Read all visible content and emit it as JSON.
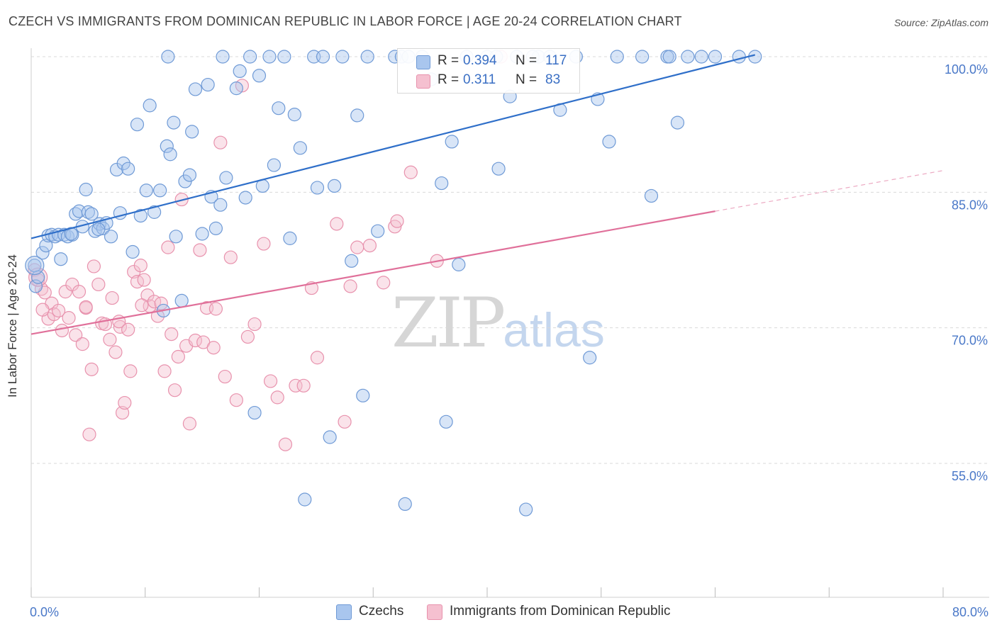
{
  "title": "CZECH VS IMMIGRANTS FROM DOMINICAN REPUBLIC IN LABOR FORCE | AGE 20-24 CORRELATION CHART",
  "source": "Source: ZipAtlas.com",
  "watermark": {
    "main": "ZIP",
    "sub": "atlas"
  },
  "colors": {
    "czech_fill": "#a9c6ee",
    "czech_stroke": "#6f9ad6",
    "czech_line": "#2f6fc9",
    "dom_fill": "#f5c0d0",
    "dom_stroke": "#e892ad",
    "dom_line": "#e0709a",
    "grid": "#d9d9d9",
    "axis_text": "#4a78c8"
  },
  "legend": {
    "rows": [
      {
        "r_label": "R =",
        "r_value": "0.394",
        "n_label": "N =",
        "n_value": "117"
      },
      {
        "r_label": "R =",
        "r_value": "0.311",
        "n_label": "N =",
        "n_value": "83"
      }
    ]
  },
  "bottom_legend": [
    "Czechs",
    "Immigrants from Dominican Republic"
  ],
  "chart_data": {
    "type": "scatter",
    "title": "CZECH VS IMMIGRANTS FROM DOMINICAN REPUBLIC IN LABOR FORCE | AGE 20-24 CORRELATION CHART",
    "xlabel": "",
    "ylabel": "In Labor Force | Age 20-24",
    "xlim": [
      0,
      80
    ],
    "ylim": [
      40,
      105
    ],
    "x_tick_labels": [
      "0.0%",
      "80.0%"
    ],
    "y_ticks": [
      55,
      70,
      85,
      100
    ],
    "y_tick_labels": [
      "55.0%",
      "70.0%",
      "85.0%",
      "100.0%"
    ],
    "grid": true,
    "legend_placement": "top-center",
    "series": [
      {
        "name": "Czechs",
        "r": 0.394,
        "n": 117,
        "trend": {
          "x": [
            0,
            63.5
          ],
          "y": [
            79.9,
            100.2
          ]
        },
        "points": [
          [
            0.3,
            76.9
          ],
          [
            0.4,
            74.6
          ],
          [
            0.6,
            75.6
          ],
          [
            1.0,
            78.3
          ],
          [
            1.3,
            79.1
          ],
          [
            1.5,
            80.2
          ],
          [
            1.8,
            80.3
          ],
          [
            2.1,
            80.1
          ],
          [
            2.4,
            80.3
          ],
          [
            2.6,
            77.6
          ],
          [
            2.9,
            80.3
          ],
          [
            3.2,
            80.1
          ],
          [
            3.6,
            80.3
          ],
          [
            3.9,
            82.6
          ],
          [
            4.2,
            82.9
          ],
          [
            4.5,
            81.2
          ],
          [
            4.8,
            85.3
          ],
          [
            5.0,
            82.8
          ],
          [
            5.3,
            82.6
          ],
          [
            5.6,
            80.7
          ],
          [
            6.0,
            81.5
          ],
          [
            6.3,
            81.0
          ],
          [
            6.6,
            81.6
          ],
          [
            7.0,
            80.1
          ],
          [
            7.5,
            87.5
          ],
          [
            7.8,
            82.7
          ],
          [
            8.1,
            88.2
          ],
          [
            8.5,
            87.6
          ],
          [
            8.9,
            78.4
          ],
          [
            9.3,
            92.5
          ],
          [
            9.6,
            82.4
          ],
          [
            10.1,
            85.2
          ],
          [
            10.4,
            94.6
          ],
          [
            10.8,
            82.8
          ],
          [
            11.3,
            85.2
          ],
          [
            11.6,
            71.9
          ],
          [
            11.9,
            90.1
          ],
          [
            12.2,
            89.2
          ],
          [
            12.5,
            92.7
          ],
          [
            12.7,
            80.1
          ],
          [
            13.2,
            73.0
          ],
          [
            13.5,
            86.2
          ],
          [
            13.9,
            86.9
          ],
          [
            14.1,
            91.7
          ],
          [
            14.4,
            96.4
          ],
          [
            15.0,
            80.4
          ],
          [
            15.5,
            96.9
          ],
          [
            15.8,
            84.5
          ],
          [
            16.2,
            81.0
          ],
          [
            16.6,
            83.6
          ],
          [
            16.8,
            100.0
          ],
          [
            17.1,
            86.6
          ],
          [
            18.0,
            96.5
          ],
          [
            18.3,
            98.4
          ],
          [
            18.8,
            84.4
          ],
          [
            19.2,
            100.0
          ],
          [
            19.6,
            60.6
          ],
          [
            20.0,
            97.9
          ],
          [
            20.3,
            85.7
          ],
          [
            20.9,
            100.0
          ],
          [
            21.3,
            88.0
          ],
          [
            21.7,
            94.3
          ],
          [
            22.2,
            100.0
          ],
          [
            22.7,
            79.9
          ],
          [
            23.1,
            93.6
          ],
          [
            23.6,
            89.9
          ],
          [
            24.0,
            51.0
          ],
          [
            24.8,
            100.0
          ],
          [
            25.1,
            85.5
          ],
          [
            25.6,
            100.0
          ],
          [
            26.2,
            57.9
          ],
          [
            26.6,
            85.7
          ],
          [
            27.3,
            100.0
          ],
          [
            28.1,
            77.4
          ],
          [
            28.6,
            93.5
          ],
          [
            29.1,
            62.5
          ],
          [
            29.5,
            100.0
          ],
          [
            30.4,
            80.7
          ],
          [
            31.9,
            100.0
          ],
          [
            32.5,
            100.0
          ],
          [
            32.8,
            50.5
          ],
          [
            33.1,
            100.0
          ],
          [
            34.3,
            100.0
          ],
          [
            35.1,
            97.5
          ],
          [
            36.0,
            86.0
          ],
          [
            36.4,
            59.6
          ],
          [
            36.9,
            90.6
          ],
          [
            37.5,
            77.0
          ],
          [
            38.2,
            100.0
          ],
          [
            40.0,
            100.0
          ],
          [
            40.8,
            100.0
          ],
          [
            41.0,
            87.6
          ],
          [
            42.0,
            95.6
          ],
          [
            42.6,
            100.0
          ],
          [
            43.4,
            49.9
          ],
          [
            44.5,
            100.0
          ],
          [
            45.5,
            100.0
          ],
          [
            46.4,
            94.1
          ],
          [
            47.8,
            100.0
          ],
          [
            49.0,
            66.7
          ],
          [
            49.7,
            95.3
          ],
          [
            50.7,
            90.6
          ],
          [
            51.4,
            100.0
          ],
          [
            53.6,
            100.0
          ],
          [
            55.8,
            100.0
          ],
          [
            56.0,
            100.0
          ],
          [
            57.6,
            100.0
          ],
          [
            58.8,
            100.0
          ],
          [
            60.0,
            100.0
          ],
          [
            62.1,
            100.0
          ],
          [
            63.5,
            100.0
          ],
          [
            54.4,
            84.6
          ],
          [
            56.7,
            92.7
          ],
          [
            12.0,
            100.0
          ],
          [
            44.0,
            100.0
          ],
          [
            3.5,
            80.4
          ],
          [
            5.9,
            80.9
          ]
        ]
      },
      {
        "name": "Immigrants from Dominican Republic",
        "r": 0.311,
        "n": 83,
        "trend": {
          "x": [
            0,
            60
          ],
          "y": [
            69.3,
            82.9
          ],
          "dashed_to": {
            "x": 80,
            "y": 87.4
          }
        },
        "points": [
          [
            0.3,
            76.4
          ],
          [
            0.6,
            75.3
          ],
          [
            0.9,
            74.3
          ],
          [
            1.2,
            73.9
          ],
          [
            1.5,
            71.0
          ],
          [
            1.8,
            72.7
          ],
          [
            2.0,
            71.5
          ],
          [
            2.4,
            71.9
          ],
          [
            2.7,
            69.7
          ],
          [
            3.0,
            74.0
          ],
          [
            3.3,
            71.1
          ],
          [
            3.6,
            74.8
          ],
          [
            3.9,
            69.2
          ],
          [
            4.2,
            74.0
          ],
          [
            4.5,
            68.2
          ],
          [
            4.8,
            72.2
          ],
          [
            5.1,
            58.2
          ],
          [
            5.3,
            65.4
          ],
          [
            5.5,
            76.8
          ],
          [
            5.9,
            74.8
          ],
          [
            6.2,
            70.5
          ],
          [
            6.5,
            70.4
          ],
          [
            6.9,
            68.7
          ],
          [
            7.1,
            73.3
          ],
          [
            7.4,
            67.3
          ],
          [
            7.8,
            70.1
          ],
          [
            8.0,
            60.6
          ],
          [
            8.2,
            61.7
          ],
          [
            8.5,
            69.8
          ],
          [
            8.7,
            65.2
          ],
          [
            9.0,
            76.2
          ],
          [
            9.3,
            75.1
          ],
          [
            9.6,
            76.9
          ],
          [
            9.9,
            75.3
          ],
          [
            10.2,
            73.6
          ],
          [
            10.4,
            72.4
          ],
          [
            10.8,
            72.9
          ],
          [
            11.1,
            71.3
          ],
          [
            11.4,
            72.7
          ],
          [
            11.7,
            65.2
          ],
          [
            12.0,
            78.9
          ],
          [
            12.3,
            69.3
          ],
          [
            12.6,
            63.1
          ],
          [
            12.9,
            66.8
          ],
          [
            13.2,
            84.2
          ],
          [
            13.6,
            68.0
          ],
          [
            13.9,
            59.4
          ],
          [
            14.4,
            68.6
          ],
          [
            14.8,
            78.6
          ],
          [
            15.1,
            68.4
          ],
          [
            15.4,
            72.2
          ],
          [
            16.0,
            67.8
          ],
          [
            16.6,
            90.5
          ],
          [
            17.0,
            64.6
          ],
          [
            17.5,
            77.8
          ],
          [
            18.0,
            62.0
          ],
          [
            18.5,
            96.8
          ],
          [
            19.0,
            69.0
          ],
          [
            19.6,
            70.4
          ],
          [
            20.4,
            79.3
          ],
          [
            21.0,
            64.1
          ],
          [
            21.6,
            62.3
          ],
          [
            22.3,
            57.1
          ],
          [
            23.2,
            63.6
          ],
          [
            23.9,
            63.6
          ],
          [
            24.6,
            74.4
          ],
          [
            25.1,
            66.7
          ],
          [
            26.8,
            81.5
          ],
          [
            27.5,
            59.6
          ],
          [
            28.0,
            74.6
          ],
          [
            28.6,
            78.9
          ],
          [
            29.7,
            79.1
          ],
          [
            30.9,
            75.0
          ],
          [
            31.9,
            81.2
          ],
          [
            32.1,
            81.8
          ],
          [
            33.3,
            87.2
          ],
          [
            35.6,
            77.4
          ],
          [
            41.2,
            100.0
          ],
          [
            4.8,
            72.3
          ],
          [
            9.7,
            72.5
          ],
          [
            1.0,
            72.0
          ],
          [
            16.2,
            72.1
          ],
          [
            7.7,
            70.7
          ]
        ]
      }
    ]
  }
}
